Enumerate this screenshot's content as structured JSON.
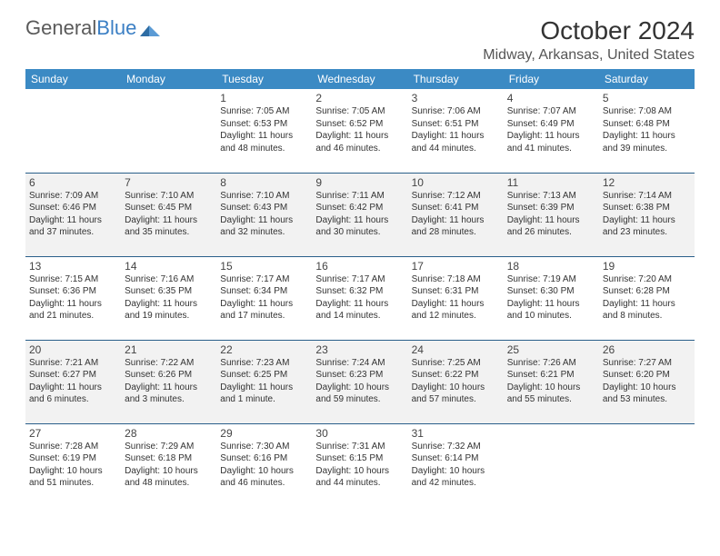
{
  "logo": {
    "word1": "General",
    "word2": "Blue"
  },
  "title": "October 2024",
  "location": "Midway, Arkansas, United States",
  "colors": {
    "header_bg": "#3b8ac4",
    "header_text": "#ffffff",
    "row_alt_bg": "#f2f2f2",
    "row_border": "#2a5f8a",
    "logo_gray": "#5a5a5a",
    "logo_blue": "#3b7fc4"
  },
  "day_headers": [
    "Sunday",
    "Monday",
    "Tuesday",
    "Wednesday",
    "Thursday",
    "Friday",
    "Saturday"
  ],
  "weeks": [
    [
      null,
      null,
      {
        "n": "1",
        "sr": "Sunrise: 7:05 AM",
        "ss": "Sunset: 6:53 PM",
        "dl": "Daylight: 11 hours and 48 minutes."
      },
      {
        "n": "2",
        "sr": "Sunrise: 7:05 AM",
        "ss": "Sunset: 6:52 PM",
        "dl": "Daylight: 11 hours and 46 minutes."
      },
      {
        "n": "3",
        "sr": "Sunrise: 7:06 AM",
        "ss": "Sunset: 6:51 PM",
        "dl": "Daylight: 11 hours and 44 minutes."
      },
      {
        "n": "4",
        "sr": "Sunrise: 7:07 AM",
        "ss": "Sunset: 6:49 PM",
        "dl": "Daylight: 11 hours and 41 minutes."
      },
      {
        "n": "5",
        "sr": "Sunrise: 7:08 AM",
        "ss": "Sunset: 6:48 PM",
        "dl": "Daylight: 11 hours and 39 minutes."
      }
    ],
    [
      {
        "n": "6",
        "sr": "Sunrise: 7:09 AM",
        "ss": "Sunset: 6:46 PM",
        "dl": "Daylight: 11 hours and 37 minutes."
      },
      {
        "n": "7",
        "sr": "Sunrise: 7:10 AM",
        "ss": "Sunset: 6:45 PM",
        "dl": "Daylight: 11 hours and 35 minutes."
      },
      {
        "n": "8",
        "sr": "Sunrise: 7:10 AM",
        "ss": "Sunset: 6:43 PM",
        "dl": "Daylight: 11 hours and 32 minutes."
      },
      {
        "n": "9",
        "sr": "Sunrise: 7:11 AM",
        "ss": "Sunset: 6:42 PM",
        "dl": "Daylight: 11 hours and 30 minutes."
      },
      {
        "n": "10",
        "sr": "Sunrise: 7:12 AM",
        "ss": "Sunset: 6:41 PM",
        "dl": "Daylight: 11 hours and 28 minutes."
      },
      {
        "n": "11",
        "sr": "Sunrise: 7:13 AM",
        "ss": "Sunset: 6:39 PM",
        "dl": "Daylight: 11 hours and 26 minutes."
      },
      {
        "n": "12",
        "sr": "Sunrise: 7:14 AM",
        "ss": "Sunset: 6:38 PM",
        "dl": "Daylight: 11 hours and 23 minutes."
      }
    ],
    [
      {
        "n": "13",
        "sr": "Sunrise: 7:15 AM",
        "ss": "Sunset: 6:36 PM",
        "dl": "Daylight: 11 hours and 21 minutes."
      },
      {
        "n": "14",
        "sr": "Sunrise: 7:16 AM",
        "ss": "Sunset: 6:35 PM",
        "dl": "Daylight: 11 hours and 19 minutes."
      },
      {
        "n": "15",
        "sr": "Sunrise: 7:17 AM",
        "ss": "Sunset: 6:34 PM",
        "dl": "Daylight: 11 hours and 17 minutes."
      },
      {
        "n": "16",
        "sr": "Sunrise: 7:17 AM",
        "ss": "Sunset: 6:32 PM",
        "dl": "Daylight: 11 hours and 14 minutes."
      },
      {
        "n": "17",
        "sr": "Sunrise: 7:18 AM",
        "ss": "Sunset: 6:31 PM",
        "dl": "Daylight: 11 hours and 12 minutes."
      },
      {
        "n": "18",
        "sr": "Sunrise: 7:19 AM",
        "ss": "Sunset: 6:30 PM",
        "dl": "Daylight: 11 hours and 10 minutes."
      },
      {
        "n": "19",
        "sr": "Sunrise: 7:20 AM",
        "ss": "Sunset: 6:28 PM",
        "dl": "Daylight: 11 hours and 8 minutes."
      }
    ],
    [
      {
        "n": "20",
        "sr": "Sunrise: 7:21 AM",
        "ss": "Sunset: 6:27 PM",
        "dl": "Daylight: 11 hours and 6 minutes."
      },
      {
        "n": "21",
        "sr": "Sunrise: 7:22 AM",
        "ss": "Sunset: 6:26 PM",
        "dl": "Daylight: 11 hours and 3 minutes."
      },
      {
        "n": "22",
        "sr": "Sunrise: 7:23 AM",
        "ss": "Sunset: 6:25 PM",
        "dl": "Daylight: 11 hours and 1 minute."
      },
      {
        "n": "23",
        "sr": "Sunrise: 7:24 AM",
        "ss": "Sunset: 6:23 PM",
        "dl": "Daylight: 10 hours and 59 minutes."
      },
      {
        "n": "24",
        "sr": "Sunrise: 7:25 AM",
        "ss": "Sunset: 6:22 PM",
        "dl": "Daylight: 10 hours and 57 minutes."
      },
      {
        "n": "25",
        "sr": "Sunrise: 7:26 AM",
        "ss": "Sunset: 6:21 PM",
        "dl": "Daylight: 10 hours and 55 minutes."
      },
      {
        "n": "26",
        "sr": "Sunrise: 7:27 AM",
        "ss": "Sunset: 6:20 PM",
        "dl": "Daylight: 10 hours and 53 minutes."
      }
    ],
    [
      {
        "n": "27",
        "sr": "Sunrise: 7:28 AM",
        "ss": "Sunset: 6:19 PM",
        "dl": "Daylight: 10 hours and 51 minutes."
      },
      {
        "n": "28",
        "sr": "Sunrise: 7:29 AM",
        "ss": "Sunset: 6:18 PM",
        "dl": "Daylight: 10 hours and 48 minutes."
      },
      {
        "n": "29",
        "sr": "Sunrise: 7:30 AM",
        "ss": "Sunset: 6:16 PM",
        "dl": "Daylight: 10 hours and 46 minutes."
      },
      {
        "n": "30",
        "sr": "Sunrise: 7:31 AM",
        "ss": "Sunset: 6:15 PM",
        "dl": "Daylight: 10 hours and 44 minutes."
      },
      {
        "n": "31",
        "sr": "Sunrise: 7:32 AM",
        "ss": "Sunset: 6:14 PM",
        "dl": "Daylight: 10 hours and 42 minutes."
      },
      null,
      null
    ]
  ]
}
